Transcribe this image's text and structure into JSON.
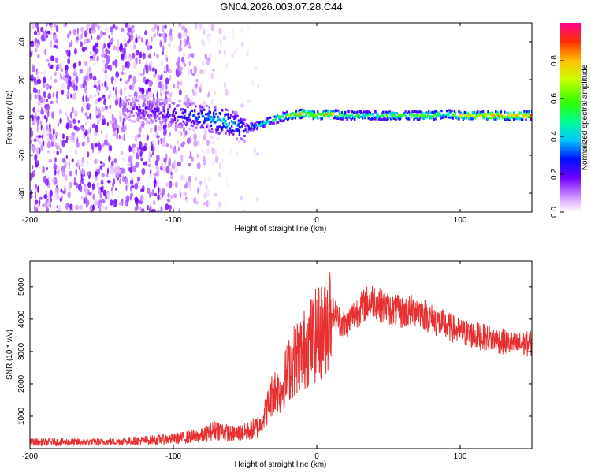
{
  "title": "GN04.2026.003.07.28.C44",
  "chart_data": [
    {
      "type": "heatmap",
      "xlabel": "Height of straight line (km)",
      "ylabel": "Frequency (Hz)",
      "xlim": [
        -200,
        150
      ],
      "ylim": [
        -50,
        50
      ],
      "xticks": [
        -200,
        -100,
        0,
        100
      ],
      "yticks": [
        -40,
        -20,
        0,
        20,
        40
      ],
      "colorbar": {
        "label": "Normalized spectral amplitude",
        "range": [
          0,
          1
        ],
        "ticks": [
          0.0,
          0.2,
          0.4,
          0.6,
          0.8
        ]
      },
      "ridge": {
        "description": "dominant frequency trace vs height",
        "x": [
          -135,
          -120,
          -100,
          -80,
          -65,
          -50,
          -40,
          -30,
          -20,
          -10,
          0,
          10,
          20,
          40,
          60,
          80,
          90,
          100,
          120,
          150
        ],
        "y": [
          5,
          4,
          2,
          0,
          -2,
          -6,
          -4,
          -1,
          1,
          2,
          1,
          2,
          1,
          1,
          1,
          1,
          2,
          1,
          1,
          1
        ],
        "amplitude": [
          0.15,
          0.2,
          0.25,
          0.35,
          0.45,
          0.3,
          0.45,
          0.55,
          0.7,
          0.85,
          0.75,
          0.85,
          0.6,
          0.6,
          0.65,
          0.7,
          0.6,
          0.8,
          0.9,
          0.9
        ]
      },
      "noise_region": {
        "x_range": [
          -200,
          -60
        ],
        "amplitude": 0.15
      }
    },
    {
      "type": "line",
      "xlabel": "Height of straight line (km)",
      "ylabel": "SNR (10 * v/v)",
      "xlim": [
        -200,
        150
      ],
      "ylim": [
        0,
        5800
      ],
      "xticks": [
        -200,
        -100,
        0,
        100
      ],
      "yticks": [
        1000,
        2000,
        3000,
        4000,
        5000
      ],
      "series": [
        {
          "name": "SNR",
          "color": "#e83030",
          "x": [
            -200,
            -150,
            -120,
            -100,
            -80,
            -70,
            -60,
            -50,
            -40,
            -35,
            -30,
            -25,
            -20,
            -15,
            -10,
            -5,
            0,
            5,
            10,
            15,
            20,
            25,
            30,
            35,
            40,
            45,
            50,
            60,
            70,
            80,
            90,
            100,
            110,
            120,
            130,
            140,
            150
          ],
          "y": [
            200,
            200,
            250,
            300,
            400,
            600,
            450,
            500,
            700,
            1200,
            1800,
            1800,
            2400,
            2800,
            3000,
            3300,
            3500,
            3700,
            4300,
            4000,
            3800,
            4100,
            4300,
            4500,
            4600,
            4400,
            4300,
            4200,
            4300,
            4000,
            3800,
            3600,
            3500,
            3400,
            3300,
            3200,
            3250
          ]
        }
      ]
    }
  ]
}
